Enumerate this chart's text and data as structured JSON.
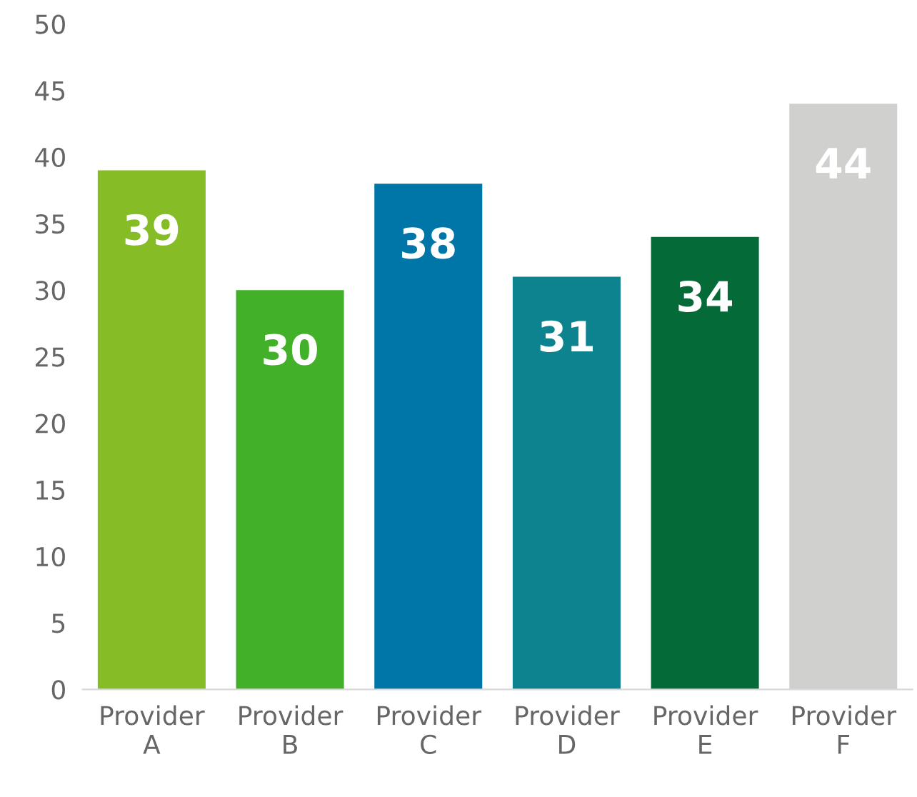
{
  "chart_data": {
    "type": "bar",
    "categories": [
      "Provider A",
      "Provider B",
      "Provider C",
      "Provider D",
      "Provider E",
      "Provider F"
    ],
    "values": [
      39,
      30,
      38,
      31,
      34,
      44
    ],
    "colors": [
      "#86bc25",
      "#43b02a",
      "#0076a8",
      "#0d8390",
      "#046a38",
      "#d0d0ce"
    ],
    "ylim": [
      0,
      50
    ],
    "yticks": [
      0,
      5,
      10,
      15,
      20,
      25,
      30,
      35,
      40,
      45,
      50
    ],
    "data_labels": true,
    "grid": false,
    "legend": false
  }
}
